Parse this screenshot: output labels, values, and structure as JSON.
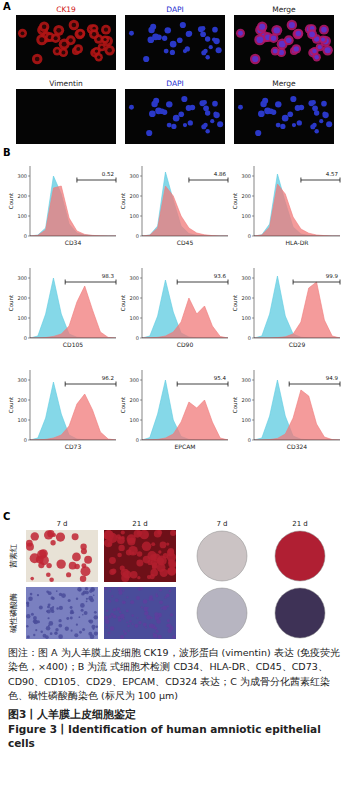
{
  "panel_a": {
    "label": "A",
    "rows": [
      [
        "CK19",
        "DAPI",
        "Merge"
      ],
      [
        "Vimentin",
        "DAPI",
        "Merge"
      ]
    ]
  },
  "panel_b": {
    "label": "B"
  },
  "chart_data": [
    {
      "type": "area",
      "x_label": "CD34",
      "y_label": "Count",
      "x": [
        0,
        1,
        2,
        3,
        4,
        5,
        6,
        7,
        8,
        9,
        10,
        11
      ],
      "xlim": [
        0,
        11
      ],
      "ylim": [
        0,
        350
      ],
      "yticks": [
        0,
        100,
        200,
        300
      ],
      "tick_labels": "y",
      "series": [
        {
          "color": "#5ccbe0",
          "values": [
            0,
            5,
            40,
            300,
            210,
            60,
            15,
            5,
            2,
            0,
            0,
            0
          ]
        },
        {
          "color": "#f07a7a",
          "values": [
            0,
            3,
            30,
            240,
            250,
            90,
            25,
            8,
            3,
            1,
            0,
            0
          ]
        }
      ],
      "gate": {
        "start": 6,
        "end": 11,
        "value": 0.52
      }
    },
    {
      "type": "area",
      "x_label": "CD45",
      "y_label": "Count",
      "x": [
        0,
        1,
        2,
        3,
        4,
        5,
        6,
        7,
        8,
        9,
        10,
        11
      ],
      "xlim": [
        0,
        11
      ],
      "ylim": [
        0,
        350
      ],
      "yticks": [
        0,
        100,
        200,
        300
      ],
      "tick_labels": "y",
      "series": [
        {
          "color": "#5ccbe0",
          "values": [
            0,
            5,
            50,
            320,
            180,
            50,
            12,
            4,
            1,
            0,
            0,
            0
          ]
        },
        {
          "color": "#f07a7a",
          "values": [
            0,
            4,
            40,
            250,
            200,
            100,
            40,
            15,
            6,
            2,
            0,
            0
          ]
        }
      ],
      "gate": {
        "start": 6,
        "end": 11,
        "value": 4.86
      }
    },
    {
      "type": "area",
      "x_label": "HLA-DR",
      "y_label": "Count",
      "x": [
        0,
        1,
        2,
        3,
        4,
        5,
        6,
        7,
        8,
        9,
        10,
        11
      ],
      "xlim": [
        0,
        11
      ],
      "ylim": [
        0,
        350
      ],
      "yticks": [
        0,
        100,
        200,
        300
      ],
      "tick_labels": "y",
      "series": [
        {
          "color": "#5ccbe0",
          "values": [
            0,
            6,
            60,
            310,
            170,
            45,
            10,
            3,
            1,
            0,
            0,
            0
          ]
        },
        {
          "color": "#f07a7a",
          "values": [
            0,
            5,
            45,
            260,
            210,
            95,
            35,
            14,
            5,
            2,
            0,
            0
          ]
        }
      ],
      "gate": {
        "start": 6,
        "end": 11,
        "value": 4.57
      }
    },
    {
      "type": "area",
      "x_label": "CD105",
      "y_label": "Count",
      "x": [
        0,
        1,
        2,
        3,
        4,
        5,
        6,
        7,
        8,
        9,
        10,
        11
      ],
      "xlim": [
        0,
        11
      ],
      "ylim": [
        0,
        350
      ],
      "yticks": [
        0,
        100,
        200,
        300
      ],
      "tick_labels": "y",
      "series": [
        {
          "color": "#5ccbe0",
          "values": [
            0,
            10,
            120,
            300,
            120,
            20,
            4,
            1,
            0,
            0,
            0,
            0
          ]
        },
        {
          "color": "#f07a7a",
          "values": [
            0,
            0,
            2,
            8,
            20,
            60,
            180,
            260,
            140,
            30,
            3,
            0
          ]
        }
      ],
      "gate": {
        "start": 4.5,
        "end": 11,
        "value": 98.3
      }
    },
    {
      "type": "area",
      "x_label": "CD90",
      "y_label": "Count",
      "x": [
        0,
        1,
        2,
        3,
        4,
        5,
        6,
        7,
        8,
        9,
        10,
        11
      ],
      "xlim": [
        0,
        11
      ],
      "ylim": [
        0,
        350
      ],
      "yticks": [
        0,
        100,
        200,
        300
      ],
      "tick_labels": "y",
      "series": [
        {
          "color": "#5ccbe0",
          "values": [
            0,
            10,
            110,
            290,
            130,
            25,
            5,
            1,
            0,
            0,
            0,
            0
          ]
        },
        {
          "color": "#f07a7a",
          "values": [
            0,
            1,
            3,
            10,
            30,
            80,
            200,
            120,
            160,
            60,
            8,
            0
          ]
        }
      ],
      "gate": {
        "start": 4.5,
        "end": 11,
        "value": 93.6
      }
    },
    {
      "type": "area",
      "x_label": "CD29",
      "y_label": "Count",
      "x": [
        0,
        1,
        2,
        3,
        4,
        5,
        6,
        7,
        8,
        9,
        10,
        11
      ],
      "xlim": [
        0,
        11
      ],
      "ylim": [
        0,
        350
      ],
      "yticks": [
        0,
        100,
        200,
        300
      ],
      "tick_labels": "y",
      "series": [
        {
          "color": "#5ccbe0",
          "values": [
            0,
            10,
            120,
            310,
            110,
            20,
            4,
            1,
            0,
            0,
            0,
            0
          ]
        },
        {
          "color": "#f07a7a",
          "values": [
            0,
            0,
            0,
            2,
            6,
            20,
            80,
            250,
            280,
            90,
            10,
            0
          ]
        }
      ],
      "gate": {
        "start": 5,
        "end": 11,
        "value": 99.9
      }
    },
    {
      "type": "area",
      "x_label": "CD73",
      "y_label": "Count",
      "x": [
        0,
        1,
        2,
        3,
        4,
        5,
        6,
        7,
        8,
        9,
        10,
        11
      ],
      "xlim": [
        0,
        11
      ],
      "ylim": [
        0,
        350
      ],
      "yticks": [
        0,
        100,
        200,
        300
      ],
      "tick_labels": "y",
      "series": [
        {
          "color": "#5ccbe0",
          "values": [
            0,
            10,
            110,
            290,
            130,
            25,
            5,
            1,
            0,
            0,
            0,
            0
          ]
        },
        {
          "color": "#f07a7a",
          "values": [
            0,
            1,
            3,
            10,
            25,
            70,
            180,
            230,
            150,
            40,
            5,
            0
          ]
        }
      ],
      "gate": {
        "start": 4.5,
        "end": 11,
        "value": 96.2
      }
    },
    {
      "type": "area",
      "x_label": "EPCAM",
      "y_label": "Count",
      "x": [
        0,
        1,
        2,
        3,
        4,
        5,
        6,
        7,
        8,
        9,
        10,
        11
      ],
      "xlim": [
        0,
        11
      ],
      "ylim": [
        0,
        350
      ],
      "yticks": [
        0,
        100,
        200,
        300
      ],
      "tick_labels": "y",
      "series": [
        {
          "color": "#5ccbe0",
          "values": [
            0,
            12,
            130,
            300,
            100,
            18,
            3,
            1,
            0,
            0,
            0,
            0
          ]
        },
        {
          "color": "#f07a7a",
          "values": [
            0,
            1,
            3,
            10,
            30,
            90,
            190,
            160,
            200,
            90,
            10,
            0
          ]
        }
      ],
      "gate": {
        "start": 4.5,
        "end": 11,
        "value": 95.4
      }
    },
    {
      "type": "area",
      "x_label": "CD324",
      "y_label": "Count",
      "x": [
        0,
        1,
        2,
        3,
        4,
        5,
        6,
        7,
        8,
        9,
        10,
        11
      ],
      "xlim": [
        0,
        11
      ],
      "ylim": [
        0,
        350
      ],
      "yticks": [
        0,
        100,
        200,
        300
      ],
      "tick_labels": "y",
      "series": [
        {
          "color": "#5ccbe0",
          "values": [
            0,
            10,
            120,
            300,
            120,
            20,
            4,
            1,
            0,
            0,
            0,
            0
          ]
        },
        {
          "color": "#f07a7a",
          "values": [
            0,
            0,
            2,
            8,
            30,
            110,
            250,
            220,
            80,
            15,
            2,
            0
          ]
        }
      ],
      "gate": {
        "start": 4.5,
        "end": 11,
        "value": 94.9
      }
    }
  ],
  "panel_c": {
    "label": "C",
    "columns": [
      "7 d",
      "21 d",
      "7 d",
      "21 d"
    ],
    "rows": [
      "茜素红",
      "碱性磷酸酶"
    ]
  },
  "caption": {
    "note": "图注：图 A 为人羊膜上皮细胞 CK19，波形蛋白 (vimentin) 表达 (免疫荧光染色，×400)；B 为流 式细胞术检测 CD34、HLA-DR、CD45、CD73、CD90、CD105、CD29、EPCAM、CD324 表达；C 为成骨分化茜素红染色、碱性磷酸酶染色 (标尺为 100 μm)",
    "title_cn": "图3丨人羊膜上皮细胞鉴定",
    "title_en": "Figure 3丨Identification of human amniotic epithelial cells"
  }
}
